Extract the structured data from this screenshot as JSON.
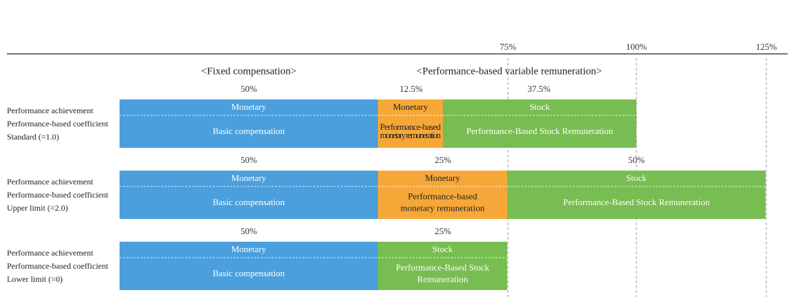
{
  "axis": {
    "ticks": [
      "75%",
      "100%",
      "125%"
    ]
  },
  "headers": [
    "<Fixed compensation>",
    "<Performance-based variable remuneration>"
  ],
  "rows": [
    {
      "labels": [
        "Performance achievement",
        "Performance-based coefficient",
        "Standard (=1.0)"
      ],
      "segments": [
        {
          "share": "50%",
          "top": "Monetary",
          "bottom": [
            "Basic compensation"
          ]
        },
        {
          "share": "12.5%",
          "top": "Monetary",
          "bottom": [
            "Performance-based",
            "monetary remuneration"
          ]
        },
        {
          "share": "37.5%",
          "top": "Stock",
          "bottom": [
            "Performance-Based Stock Remuneration"
          ]
        }
      ]
    },
    {
      "labels": [
        "Performance achievement",
        "Performance-based coefficient",
        "Upper limit (=2.0)"
      ],
      "segments": [
        {
          "share": "50%",
          "top": "Monetary",
          "bottom": [
            "Basic compensation"
          ]
        },
        {
          "share": "25%",
          "top": "Monetary",
          "bottom": [
            "Performance-based",
            "monetary remuneration"
          ]
        },
        {
          "share": "50%",
          "top": "Stock",
          "bottom": [
            "Performance-Based Stock Remuneration"
          ]
        }
      ]
    },
    {
      "labels": [
        "Performance achievement",
        "Performance-based coefficient",
        "Lower limit (=0)"
      ],
      "segments": [
        {
          "share": "50%",
          "top": "Monetary",
          "bottom": [
            "Basic compensation"
          ]
        },
        {
          "share": "25%",
          "top": "Stock",
          "bottom": [
            "Performance-Based Stock",
            "Remuneration"
          ]
        }
      ]
    }
  ]
}
